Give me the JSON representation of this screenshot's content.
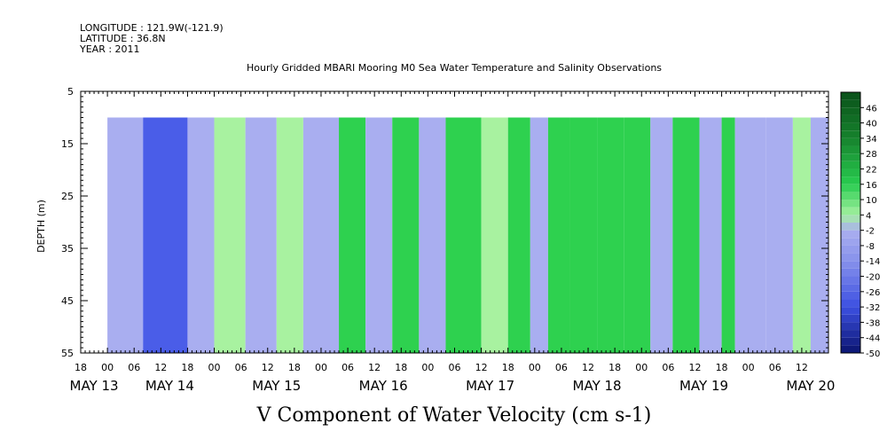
{
  "header": {
    "longitude": "LONGITUDE : 121.9W(-121.9)",
    "latitude": "LATITUDE : 36.8N",
    "year": "YEAR : 2011",
    "title": "Hourly Gridded MBARI Mooring M0 Sea Water Temperature and Salinity Observations"
  },
  "chart_data": {
    "type": "heatmap",
    "title": "Hourly Gridded MBARI Mooring M0 Sea Water Temperature and Salinity Observations",
    "xlabel": "V Component of Water Velocity (cm s-1)",
    "ylabel": "DEPTH (m)",
    "x_range_hours": [
      -6,
      162
    ],
    "x_start": "2011-05-13T00:00",
    "ylim": [
      55,
      5
    ],
    "data_depth_range": [
      10,
      55
    ],
    "y_ticks": [
      5,
      15,
      25,
      35,
      45,
      55
    ],
    "x_hour_tick_labels": [
      "18",
      "00",
      "06",
      "12",
      "18",
      "00",
      "06",
      "12",
      "18",
      "00",
      "06",
      "12",
      "18",
      "00",
      "06",
      "12",
      "18",
      "00",
      "06",
      "12",
      "18",
      "00",
      "06",
      "12",
      "18",
      "00",
      "06",
      "12"
    ],
    "x_day_labels": [
      "MAY 13",
      "MAY 14",
      "MAY 15",
      "MAY 16",
      "MAY 17",
      "MAY 18",
      "MAY 19",
      "MAY 20"
    ],
    "colorbar_levels": [
      "46",
      "40",
      "34",
      "28",
      "22",
      "16",
      "10",
      "4",
      "-2",
      "-8",
      "-14",
      "-20",
      "-26",
      "-32",
      "-38",
      "-44",
      "-50"
    ],
    "colorbar_range": [
      -50,
      52
    ],
    "colors": {
      "strong_positive": "#0a5a1e",
      "positive": "#2ed14f",
      "weak_positive": "#a8f2a0",
      "weak_negative": "#a9aef0",
      "negative": "#4a5de8",
      "strong_negative": "#0a1470"
    },
    "velocity_bands_by_hour": [
      {
        "start": 0,
        "end": 8,
        "value": -6
      },
      {
        "start": 8,
        "end": 18,
        "value": -24
      },
      {
        "start": 18,
        "end": 24,
        "value": -6
      },
      {
        "start": 24,
        "end": 31,
        "value": 8
      },
      {
        "start": 31,
        "end": 38,
        "value": -8
      },
      {
        "start": 38,
        "end": 44,
        "value": 6
      },
      {
        "start": 44,
        "end": 52,
        "value": -8
      },
      {
        "start": 52,
        "end": 58,
        "value": 12
      },
      {
        "start": 58,
        "end": 64,
        "value": -10
      },
      {
        "start": 64,
        "end": 70,
        "value": 10
      },
      {
        "start": 70,
        "end": 76,
        "value": -8
      },
      {
        "start": 76,
        "end": 84,
        "value": 14
      },
      {
        "start": 84,
        "end": 90,
        "value": 8
      },
      {
        "start": 90,
        "end": 95,
        "value": 22
      },
      {
        "start": 95,
        "end": 99,
        "value": -8
      },
      {
        "start": 99,
        "end": 104,
        "value": 20
      },
      {
        "start": 104,
        "end": 110,
        "value": 12
      },
      {
        "start": 110,
        "end": 116,
        "value": 18
      },
      {
        "start": 116,
        "end": 122,
        "value": 10
      },
      {
        "start": 122,
        "end": 127,
        "value": -6
      },
      {
        "start": 127,
        "end": 133,
        "value": 14
      },
      {
        "start": 133,
        "end": 138,
        "value": -12
      },
      {
        "start": 138,
        "end": 141,
        "value": 18
      },
      {
        "start": 141,
        "end": 148,
        "value": -14
      },
      {
        "start": 148,
        "end": 154,
        "value": -4
      },
      {
        "start": 154,
        "end": 158,
        "value": 8
      },
      {
        "start": 158,
        "end": 162,
        "value": -6
      }
    ]
  }
}
